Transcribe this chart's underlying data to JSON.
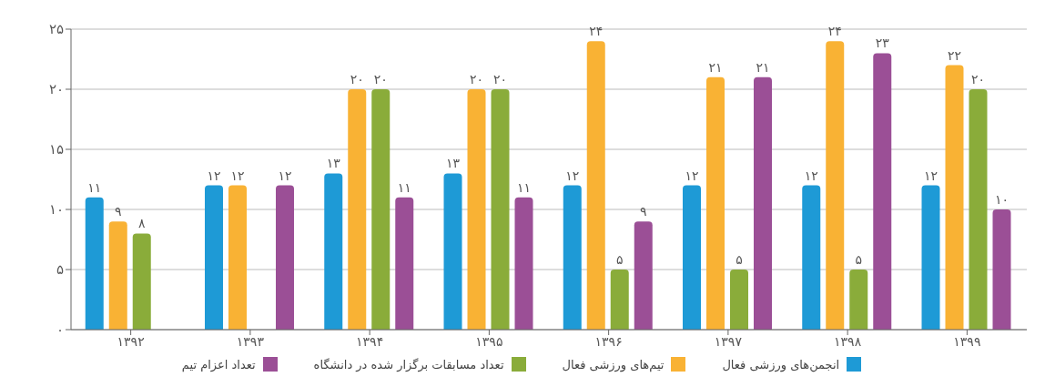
{
  "chart_data": {
    "type": "bar",
    "categories": [
      "۱۳۹۲",
      "۱۳۹۳",
      "۱۳۹۴",
      "۱۳۹۵",
      "۱۳۹۶",
      "۱۳۹۷",
      "۱۳۹۸",
      "۱۳۹۹"
    ],
    "series": [
      {
        "name": "انجمن‌های ورزشی فعال",
        "color": "#1e9ad6",
        "values": [
          11,
          12,
          13,
          13,
          12,
          12,
          12,
          12
        ],
        "value_labels": [
          "۱۱",
          "۱۲",
          "۱۳",
          "۱۳",
          "۱۲",
          "۱۲",
          "۱۲",
          "۱۲"
        ]
      },
      {
        "name": "تیم‌های ورزشی فعال",
        "color": "#f9b234",
        "values": [
          9,
          12,
          20,
          20,
          24,
          21,
          24,
          22
        ],
        "value_labels": [
          "۹",
          "۱۲",
          "۲۰",
          "۲۰",
          "۲۴",
          "۲۱",
          "۲۴",
          "۲۲"
        ]
      },
      {
        "name": "تعداد مسابقات برگزار شده در دانشگاه",
        "color": "#8aac3a",
        "values": [
          8,
          0,
          20,
          20,
          5,
          5,
          5,
          20
        ],
        "value_labels": [
          "۸",
          null,
          "۲۰",
          "۲۰",
          "۵",
          "۵",
          "۵",
          "۲۰"
        ]
      },
      {
        "name": "تعداد اعزام تیم",
        "color": "#9b4f96",
        "values": [
          0,
          12,
          11,
          11,
          9,
          21,
          23,
          10
        ],
        "value_labels": [
          null,
          "۱۲",
          "۱۱",
          "۱۱",
          "۹",
          "۲۱",
          "۲۳",
          "۱۰"
        ]
      }
    ],
    "ylim": [
      0,
      25
    ],
    "yticks": [
      {
        "value": 0,
        "label": "۰"
      },
      {
        "value": 5,
        "label": "۵"
      },
      {
        "value": 10,
        "label": "۱۰"
      },
      {
        "value": 15,
        "label": "۱۵"
      },
      {
        "value": 20,
        "label": "۲۰"
      },
      {
        "value": 25,
        "label": "۲۵"
      }
    ],
    "grid": "y",
    "legend": "bottom"
  }
}
